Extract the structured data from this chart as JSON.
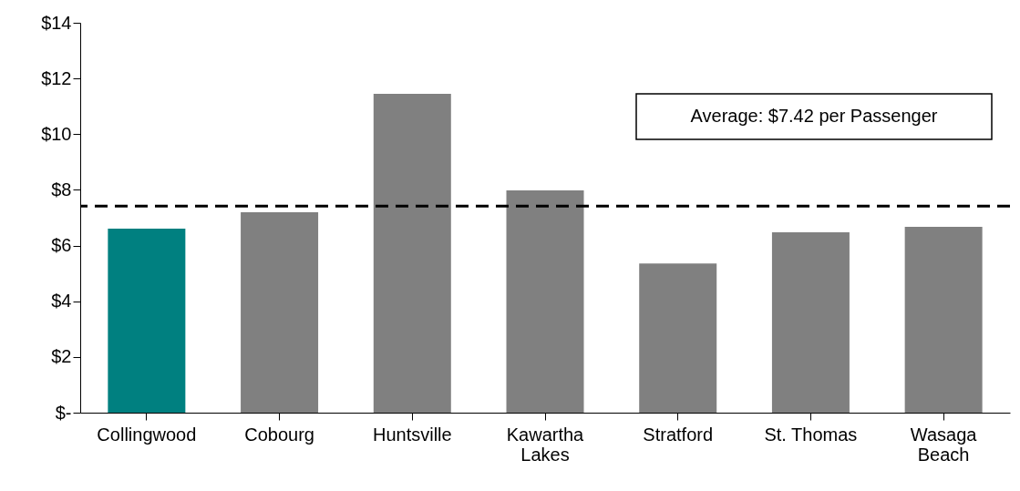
{
  "chart_data": {
    "type": "bar",
    "categories": [
      "Collingwood",
      "Cobourg",
      "Huntsville",
      "Kawartha Lakes",
      "Stratford",
      "St. Thomas",
      "Wasaga Beach"
    ],
    "values": [
      6.61,
      7.2,
      11.45,
      7.98,
      5.36,
      6.48,
      6.67
    ],
    "colors": [
      "#008080",
      "#808080",
      "#808080",
      "#808080",
      "#808080",
      "#808080",
      "#808080"
    ],
    "ylim": [
      0,
      14
    ],
    "yticks": [
      {
        "value": 0,
        "label": "$-"
      },
      {
        "value": 2,
        "label": "$2"
      },
      {
        "value": 4,
        "label": "$4"
      },
      {
        "value": 6,
        "label": "$6"
      },
      {
        "value": 8,
        "label": "$8"
      },
      {
        "value": 10,
        "label": "$10"
      },
      {
        "value": 12,
        "label": "$12"
      },
      {
        "value": 14,
        "label": "$14"
      }
    ],
    "ref_lines": [
      {
        "axis": "y",
        "value": 7.42,
        "label": "Average: $7.42 per Passenger",
        "color": "#000000",
        "line_style": "dashed"
      }
    ],
    "grid": false
  }
}
